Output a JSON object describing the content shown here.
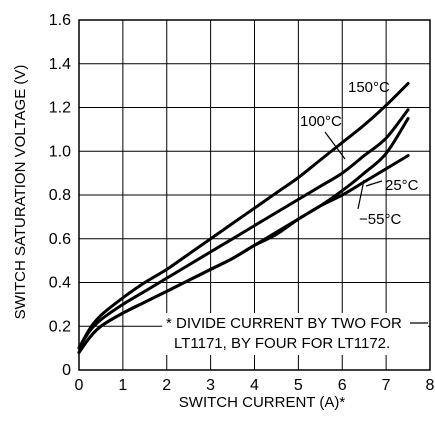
{
  "chart_data": {
    "type": "line",
    "xlabel": "SWITCH CURRENT  (A)*",
    "ylabel": "SWITCH SATURATION VOLTAGE (V)",
    "xlim": [
      0,
      8
    ],
    "ylim": [
      0,
      1.6
    ],
    "x_ticks": [
      "0",
      "1",
      "2",
      "3",
      "4",
      "5",
      "6",
      "7",
      "8"
    ],
    "y_ticks": [
      "0",
      "0.2",
      "0.4",
      "0.6",
      "0.8",
      "1.0",
      "1.2",
      "1.4",
      "1.6"
    ],
    "grid": true,
    "footnote_lines": [
      "* DIVIDE CURRENT BY TWO FOR",
      "LT1171, BY FOUR FOR LT1172."
    ],
    "series": [
      {
        "name": "150°C",
        "x": [
          0,
          0.25,
          0.5,
          1,
          1.5,
          2,
          2.5,
          3,
          3.5,
          4,
          4.5,
          5,
          5.5,
          6,
          6.5,
          7,
          7.5
        ],
        "y": [
          0.1,
          0.19,
          0.25,
          0.33,
          0.4,
          0.46,
          0.53,
          0.6,
          0.67,
          0.74,
          0.81,
          0.88,
          0.96,
          1.04,
          1.12,
          1.21,
          1.31
        ]
      },
      {
        "name": "100°C",
        "x": [
          0,
          0.25,
          0.5,
          1,
          1.5,
          2,
          2.5,
          3,
          3.5,
          4,
          4.5,
          5,
          5.5,
          6,
          6.5,
          7,
          7.5
        ],
        "y": [
          0.1,
          0.18,
          0.23,
          0.3,
          0.36,
          0.42,
          0.48,
          0.54,
          0.6,
          0.66,
          0.72,
          0.78,
          0.84,
          0.9,
          0.98,
          1.06,
          1.19
        ]
      },
      {
        "name": "25°C",
        "x": [
          0,
          0.25,
          0.5,
          1,
          1.5,
          2,
          2.5,
          3,
          3.5,
          4,
          4.5,
          5,
          5.5,
          6,
          6.5,
          7,
          7.5
        ],
        "y": [
          0.08,
          0.15,
          0.2,
          0.26,
          0.31,
          0.36,
          0.41,
          0.46,
          0.51,
          0.57,
          0.63,
          0.69,
          0.75,
          0.8,
          0.86,
          0.92,
          0.98
        ]
      },
      {
        "name": "−55°C",
        "x": [
          0,
          0.25,
          0.5,
          1,
          1.5,
          2,
          2.5,
          3,
          3.5,
          4,
          4.5,
          5,
          5.5,
          6,
          6.5,
          7,
          7.5
        ],
        "y": [
          0.08,
          0.15,
          0.2,
          0.26,
          0.31,
          0.36,
          0.41,
          0.46,
          0.51,
          0.57,
          0.62,
          0.69,
          0.75,
          0.82,
          0.9,
          0.99,
          1.15
        ]
      }
    ]
  }
}
